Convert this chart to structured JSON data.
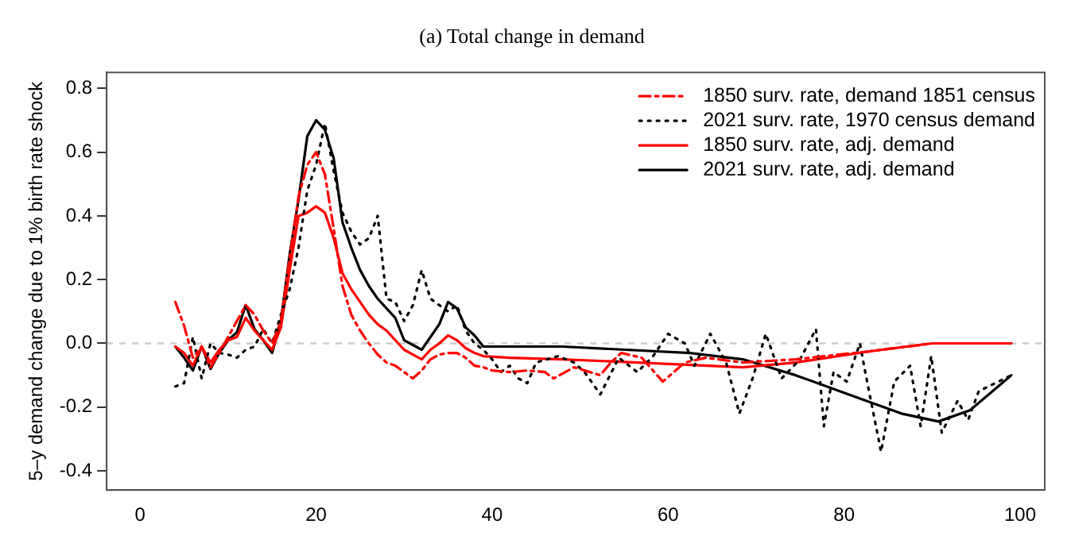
{
  "chart_data": {
    "type": "line",
    "title": "(a) Total change in demand",
    "ylabel": "5–y demand change due to 1% birth rate shock",
    "xlim": [
      -3.8,
      102.8
    ],
    "xticks": [
      0,
      20,
      40,
      60,
      80,
      100
    ],
    "ylim": [
      -0.46,
      0.85
    ],
    "yticks": [
      -0.4,
      -0.2,
      {
        "value": 0,
        "label": "0.0"
      },
      0.2,
      0.4,
      0.6,
      0.8
    ],
    "grid": false,
    "legend": "top right",
    "marker": "none",
    "ref_lines": [
      {
        "axis": "y",
        "value": 0,
        "color": "#cccccc",
        "line_style": "dashed"
      }
    ],
    "series": [
      {
        "name": "1850 surv. rate, demand 1851 census",
        "color": "#ff0000",
        "line_style": "dashed",
        "x": [
          4,
          5,
          6,
          7,
          8,
          9,
          10,
          11,
          12,
          13,
          14,
          15,
          16,
          17,
          18,
          19,
          20,
          21,
          22,
          23,
          24,
          25,
          26,
          27,
          28,
          29,
          30,
          31,
          32,
          33,
          34,
          35,
          36,
          37,
          38,
          39,
          40,
          42,
          44,
          46,
          47,
          49.3,
          52.3,
          53.5,
          54.7,
          57,
          59.4,
          61.9,
          64.3,
          68.5,
          74.5,
          82.9,
          90,
          99
        ],
        "values": [
          0.13,
          0.055,
          -0.045,
          -0.01,
          -0.075,
          -0.03,
          0.02,
          0.07,
          0.12,
          0.09,
          0.04,
          0,
          0.07,
          0.27,
          0.46,
          0.56,
          0.6,
          0.53,
          0.36,
          0.18,
          0.09,
          0.04,
          0,
          -0.035,
          -0.06,
          -0.07,
          -0.09,
          -0.11,
          -0.085,
          -0.05,
          -0.035,
          -0.03,
          -0.03,
          -0.045,
          -0.07,
          -0.075,
          -0.085,
          -0.09,
          -0.085,
          -0.09,
          -0.11,
          -0.075,
          -0.1,
          -0.06,
          -0.03,
          -0.045,
          -0.12,
          -0.06,
          -0.045,
          -0.06,
          -0.05,
          -0.025,
          0,
          0
        ]
      },
      {
        "name": "2021 surv. rate, 1970 census demand",
        "color": "#000000",
        "line_style": "dotted",
        "x": [
          4,
          5,
          6,
          7,
          8,
          9,
          10,
          11,
          12,
          13,
          14,
          15,
          16,
          17,
          18,
          19,
          20,
          21,
          22,
          23,
          24,
          25,
          26,
          27,
          28,
          29,
          30,
          31,
          32,
          33,
          34,
          35,
          36,
          37,
          38,
          39,
          40,
          41,
          42,
          43,
          44,
          45,
          47.5,
          49.3,
          50.5,
          52.3,
          54.4,
          56.5,
          58.3,
          60,
          61.9,
          63,
          64.8,
          66.6,
          68.1,
          69.6,
          71.1,
          72.9,
          75,
          76.8,
          77.7,
          78.8,
          80.3,
          81.8,
          82.4,
          84.2,
          85.7,
          87.5,
          88.7,
          89.9,
          91.1,
          92.9,
          94.1,
          95.3,
          99
        ],
        "values": [
          -0.135,
          -0.125,
          0.02,
          -0.11,
          0,
          -0.03,
          -0.035,
          -0.045,
          -0.02,
          -0.01,
          0.045,
          0,
          0.09,
          0.17,
          0.3,
          0.48,
          0.56,
          0.69,
          0.54,
          0.41,
          0.35,
          0.31,
          0.33,
          0.4,
          0.14,
          0.13,
          0.07,
          0.12,
          0.23,
          0.14,
          0.12,
          0.1,
          0.12,
          0.04,
          0,
          -0.02,
          -0.05,
          -0.09,
          -0.07,
          -0.11,
          -0.125,
          -0.06,
          -0.04,
          -0.06,
          -0.09,
          -0.16,
          -0.045,
          -0.09,
          -0.04,
          0.03,
          0,
          -0.07,
          0.03,
          -0.06,
          -0.22,
          -0.11,
          0.03,
          -0.11,
          -0.05,
          0.045,
          -0.26,
          -0.09,
          -0.12,
          0,
          -0.09,
          -0.34,
          -0.12,
          -0.07,
          -0.26,
          -0.04,
          -0.28,
          -0.18,
          -0.24,
          -0.15,
          -0.1
        ]
      },
      {
        "name": "1850 surv. rate, adj. demand",
        "color": "#ff0000",
        "line_style": "solid",
        "x": [
          4,
          5,
          6,
          7,
          8,
          9,
          10,
          11,
          12,
          13,
          14,
          15,
          16,
          17,
          18,
          19,
          20,
          21,
          22,
          23,
          24,
          25,
          26,
          27,
          28,
          29,
          30,
          31,
          32,
          33,
          34,
          35,
          36,
          37,
          38,
          39,
          42,
          48,
          56.5,
          68.5,
          74.5,
          82.9,
          90,
          99
        ],
        "values": [
          -0.01,
          -0.03,
          -0.07,
          -0.01,
          -0.06,
          -0.02,
          0.01,
          0.02,
          0.08,
          0.04,
          0.01,
          -0.02,
          0.05,
          0.23,
          0.4,
          0.41,
          0.43,
          0.41,
          0.33,
          0.22,
          0.17,
          0.13,
          0.09,
          0.06,
          0.04,
          0.01,
          -0.02,
          -0.035,
          -0.05,
          -0.02,
          0,
          0.025,
          0.01,
          -0.015,
          -0.03,
          -0.04,
          -0.045,
          -0.05,
          -0.06,
          -0.075,
          -0.06,
          -0.025,
          0,
          0
        ]
      },
      {
        "name": "2021 surv. rate, adj. demand",
        "color": "#000000",
        "line_style": "solid",
        "x": [
          4,
          5,
          6,
          7,
          8,
          9,
          10,
          11,
          12,
          13,
          14,
          15,
          16,
          17,
          18,
          19,
          20,
          21,
          22,
          23,
          24,
          25,
          26,
          27,
          28,
          29,
          30,
          32,
          34,
          35,
          36,
          37,
          38,
          39,
          48,
          62.5,
          68.5,
          74.5,
          80.5,
          86.5,
          90.7,
          94.3,
          99
        ],
        "values": [
          -0.01,
          -0.045,
          -0.085,
          -0.01,
          -0.08,
          -0.03,
          0.01,
          0.035,
          0.12,
          0.045,
          0.01,
          -0.03,
          0.07,
          0.28,
          0.45,
          0.65,
          0.7,
          0.67,
          0.58,
          0.38,
          0.3,
          0.23,
          0.18,
          0.14,
          0.11,
          0.08,
          0.01,
          -0.02,
          0.06,
          0.13,
          0.11,
          0.05,
          0.025,
          -0.01,
          -0.01,
          -0.03,
          -0.05,
          -0.1,
          -0.16,
          -0.22,
          -0.245,
          -0.21,
          -0.1
        ]
      }
    ]
  }
}
